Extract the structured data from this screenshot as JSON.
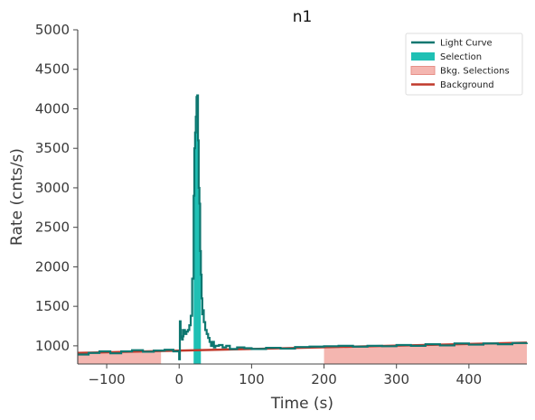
{
  "chart_data": {
    "type": "line",
    "title": "n1",
    "xlabel": "Time (s)",
    "ylabel": "Rate (cnts/s)",
    "xlim": [
      -140,
      480
    ],
    "ylim": [
      770,
      5000
    ],
    "x_ticks": [
      -100,
      0,
      100,
      200,
      300,
      400
    ],
    "x_tick_labels": [
      "−100",
      "0",
      "100",
      "200",
      "300",
      "400"
    ],
    "y_ticks": [
      1000,
      1500,
      2000,
      2500,
      3000,
      3500,
      4000,
      4500,
      5000
    ],
    "y_tick_labels": [
      "1000",
      "1500",
      "2000",
      "2500",
      "3000",
      "3500",
      "4000",
      "4500",
      "5000"
    ],
    "grid": false,
    "legend_position": "top-right",
    "legend": [
      {
        "label": "Light Curve",
        "kind": "line",
        "color": "#0e7770"
      },
      {
        "label": "Selection",
        "kind": "patch",
        "color": "#1fc0b4"
      },
      {
        "label": "Bkg. Selections",
        "kind": "patch",
        "color": "#f4b6b0",
        "edge": "#e79088"
      },
      {
        "label": "Background",
        "kind": "line",
        "color": "#c0392b"
      }
    ],
    "light_curve": {
      "name": "Light Curve",
      "color": "#0e7770",
      "x": [
        -140,
        -125,
        -110,
        -95,
        -80,
        -65,
        -50,
        -35,
        -20,
        -8,
        0,
        1,
        2,
        3,
        4,
        5,
        6,
        8,
        10,
        12,
        14,
        16,
        18,
        20,
        21,
        22,
        23,
        24,
        25,
        26,
        27,
        28,
        29,
        30,
        31,
        32,
        33,
        34,
        36,
        38,
        40,
        42,
        44,
        46,
        48,
        50,
        55,
        60,
        65,
        70,
        80,
        90,
        100,
        120,
        140,
        160,
        180,
        200,
        220,
        240,
        260,
        280,
        300,
        320,
        340,
        360,
        380,
        400,
        420,
        440,
        460,
        480
      ],
      "y": [
        890,
        910,
        930,
        905,
        930,
        945,
        925,
        940,
        950,
        930,
        830,
        1310,
        1200,
        1100,
        1080,
        1120,
        1200,
        1150,
        1180,
        1200,
        1260,
        1380,
        1850,
        2900,
        3500,
        3700,
        3900,
        4150,
        4170,
        3600,
        3000,
        2800,
        2200,
        1900,
        1600,
        1400,
        1450,
        1300,
        1200,
        1150,
        1100,
        1050,
        1000,
        1050,
        980,
        1000,
        1010,
        980,
        1000,
        960,
        980,
        970,
        960,
        975,
        965,
        985,
        990,
        995,
        1000,
        990,
        1000,
        995,
        1010,
        1000,
        1020,
        1005,
        1030,
        1015,
        1030,
        1020,
        1035,
        1040
      ]
    },
    "selection": {
      "name": "Selection",
      "color": "#1fc0b4",
      "range": [
        20,
        30
      ]
    },
    "background_selections": {
      "name": "Bkg. Selections",
      "color": "#f4b6b0",
      "ranges": [
        [
          -140,
          -25
        ],
        [
          200,
          480
        ]
      ]
    },
    "background": {
      "name": "Background",
      "color": "#c0392b",
      "x": [
        -140,
        480
      ],
      "y": [
        910,
        1040
      ]
    }
  }
}
